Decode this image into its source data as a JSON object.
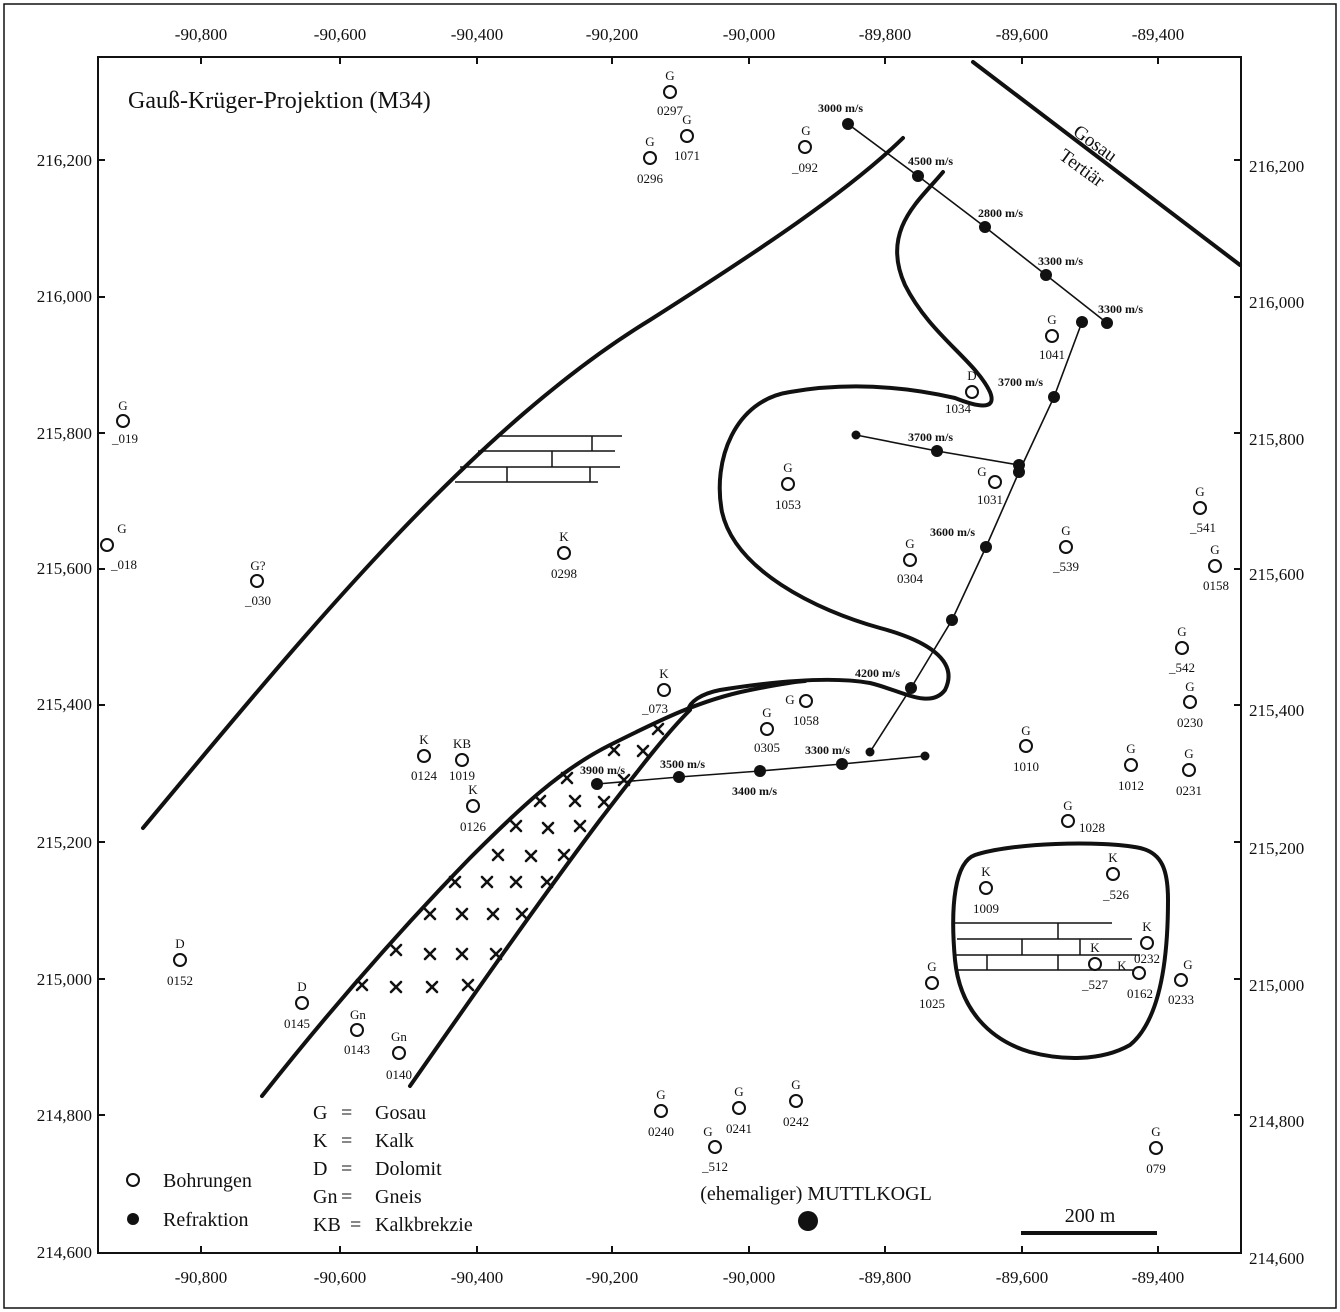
{
  "title": "Gauß-Krüger-Projektion (M34)",
  "axes": {
    "x_ticks": [
      "-90,800",
      "-90,600",
      "-90,400",
      "-90,200",
      "-90,000",
      "-89,800",
      "-89,600",
      "-89,400"
    ],
    "y_ticks": [
      "216,200",
      "216,000",
      "215,800",
      "215,600",
      "215,400",
      "215,200",
      "215,000",
      "214,800",
      "214,600"
    ]
  },
  "fault_labels": [
    "Gosau",
    "Tertiär"
  ],
  "boreholes": [
    {
      "id": "_019",
      "code": "G"
    },
    {
      "id": "_018",
      "code": "G"
    },
    {
      "id": "_030",
      "code": "G?"
    },
    {
      "id": "0297",
      "code": "G"
    },
    {
      "id": "1071",
      "code": "G"
    },
    {
      "id": "0296",
      "code": "G"
    },
    {
      "id": "_092",
      "code": "G"
    },
    {
      "id": "0298",
      "code": "K"
    },
    {
      "id": "1053",
      "code": "G"
    },
    {
      "id": "1034",
      "code": "D"
    },
    {
      "id": "1041",
      "code": "G"
    },
    {
      "id": "1031",
      "code": "G"
    },
    {
      "id": "0304",
      "code": "G"
    },
    {
      "id": "_539",
      "code": "G"
    },
    {
      "id": "_541",
      "code": "G"
    },
    {
      "id": "0158",
      "code": "G"
    },
    {
      "id": "_542",
      "code": "G"
    },
    {
      "id": "0230",
      "code": "G"
    },
    {
      "id": "_073",
      "code": "K"
    },
    {
      "id": "1058",
      "code": "G"
    },
    {
      "id": "0305",
      "code": "G"
    },
    {
      "id": "0124",
      "code": "K"
    },
    {
      "id": "1019",
      "code": "KB"
    },
    {
      "id": "0126",
      "code": "K"
    },
    {
      "id": "1010",
      "code": "G"
    },
    {
      "id": "1012",
      "code": "G"
    },
    {
      "id": "0231",
      "code": "G"
    },
    {
      "id": "1028",
      "code": "G"
    },
    {
      "id": "1009",
      "code": "K"
    },
    {
      "id": "_526",
      "code": "K"
    },
    {
      "id": "0232",
      "code": "K"
    },
    {
      "id": "_527",
      "code": "K"
    },
    {
      "id": "0162",
      "code": "K"
    },
    {
      "id": "0233",
      "code": "G"
    },
    {
      "id": "1025",
      "code": "G"
    },
    {
      "id": "0152",
      "code": "D"
    },
    {
      "id": "0145",
      "code": "D"
    },
    {
      "id": "0143",
      "code": "Gn"
    },
    {
      "id": "0140",
      "code": "Gn"
    },
    {
      "id": "0240",
      "code": "G"
    },
    {
      "id": "0241",
      "code": "G"
    },
    {
      "id": "0242",
      "code": "G"
    },
    {
      "id": "_512",
      "code": "G"
    },
    {
      "id": "079",
      "code": "G"
    }
  ],
  "velocities": [
    "3000 m/s",
    "4500 m/s",
    "2800 m/s",
    "3300 m/s",
    "3300 m/s",
    "3700 m/s",
    "3700 m/s",
    "3600 m/s",
    "4200 m/s",
    "3300 m/s",
    "3900 m/s",
    "3500 m/s",
    "3400 m/s"
  ],
  "legend": {
    "symbols": [
      {
        "icon": "open-circle-icon",
        "label": "Bohrungen"
      },
      {
        "icon": "filled-dot-icon",
        "label": "Refraktion"
      }
    ],
    "codes": [
      {
        "code": "G",
        "name": "Gosau"
      },
      {
        "code": "K",
        "name": "Kalk"
      },
      {
        "code": "D",
        "name": "Dolomit"
      },
      {
        "code": "Gn",
        "name": "Gneis"
      },
      {
        "code": "KB",
        "name": "Kalkbrekzie"
      }
    ]
  },
  "landmark": "(ehemaliger) MUTTLKOGL",
  "scale_bar": "200 m"
}
